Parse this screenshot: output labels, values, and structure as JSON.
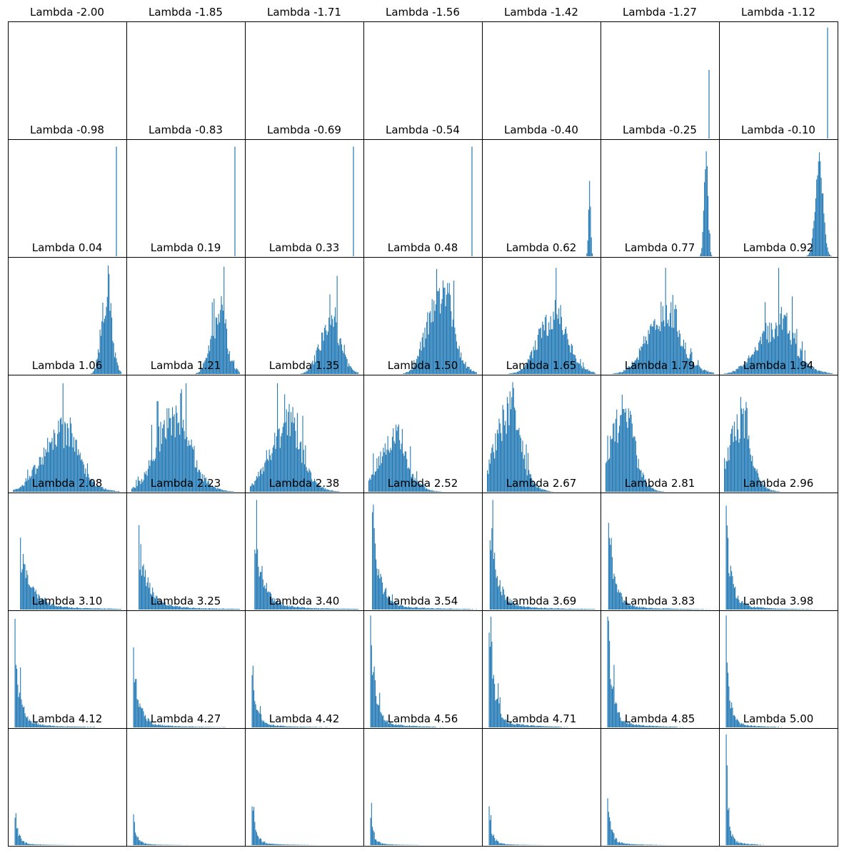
{
  "chart_data": {
    "type": "bar",
    "grid_layout": {
      "rows": 7,
      "cols": 7
    },
    "title_prefix": "Lambda",
    "bar_color": "#1f77b4",
    "axes_visible": false,
    "grid": false,
    "panels": [
      {
        "lambda": "-2.00",
        "shape": "empty"
      },
      {
        "lambda": "-1.85",
        "shape": "empty"
      },
      {
        "lambda": "-1.71",
        "shape": "empty"
      },
      {
        "lambda": "-1.56",
        "shape": "empty"
      },
      {
        "lambda": "-1.42",
        "shape": "empty"
      },
      {
        "lambda": "-1.27",
        "shape": "spike",
        "position": 0.955,
        "height": 0.6
      },
      {
        "lambda": "-1.12",
        "shape": "spike",
        "position": 0.955,
        "height": 0.97
      },
      {
        "lambda": "-0.98",
        "shape": "spike",
        "position": 0.955,
        "height": 0.96
      },
      {
        "lambda": "-0.83",
        "shape": "spike",
        "position": 0.955,
        "height": 0.96
      },
      {
        "lambda": "-0.69",
        "shape": "spike",
        "position": 0.955,
        "height": 0.96
      },
      {
        "lambda": "-0.54",
        "shape": "spike",
        "position": 0.955,
        "height": 0.96
      },
      {
        "lambda": "-0.40",
        "shape": "narrow",
        "position": 0.95,
        "spread": 0.01,
        "height": 0.66
      },
      {
        "lambda": "-0.25",
        "shape": "narrow",
        "position": 0.93,
        "spread": 0.018,
        "height": 0.92
      },
      {
        "lambda": "-0.10",
        "shape": "narrow",
        "position": 0.88,
        "spread": 0.035,
        "height": 0.91
      },
      {
        "lambda": "0.04",
        "shape": "peaked",
        "position": 0.85,
        "spread": 0.045,
        "height": 0.95
      },
      {
        "lambda": "0.19",
        "shape": "peaked",
        "position": 0.78,
        "spread": 0.07,
        "height": 0.94
      },
      {
        "lambda": "0.33",
        "shape": "peaked",
        "position": 0.71,
        "spread": 0.09,
        "height": 0.86
      },
      {
        "lambda": "0.48",
        "shape": "peaked",
        "position": 0.62,
        "spread": 0.11,
        "height": 0.92
      },
      {
        "lambda": "0.62",
        "shape": "peaked",
        "position": 0.56,
        "spread": 0.13,
        "height": 0.93
      },
      {
        "lambda": "0.77",
        "shape": "peaked",
        "position": 0.48,
        "spread": 0.15,
        "height": 0.93
      },
      {
        "lambda": "0.92",
        "shape": "peaked",
        "position": 0.42,
        "spread": 0.16,
        "height": 0.93
      },
      {
        "lambda": "1.06",
        "shape": "peaked",
        "position": 0.37,
        "spread": 0.16,
        "height": 0.95
      },
      {
        "lambda": "1.21",
        "shape": "peaked",
        "position": 0.33,
        "spread": 0.15,
        "height": 0.95
      },
      {
        "lambda": "1.35",
        "shape": "peaked",
        "position": 0.27,
        "spread": 0.14,
        "height": 0.95
      },
      {
        "lambda": "1.50",
        "shape": "peaked",
        "position": 0.18,
        "spread": 0.12,
        "height": 0.59
      },
      {
        "lambda": "1.65",
        "shape": "peaked",
        "position": 0.15,
        "spread": 0.11,
        "height": 0.96
      },
      {
        "lambda": "1.79",
        "shape": "peaked",
        "position": 0.12,
        "spread": 0.1,
        "height": 0.85
      },
      {
        "lambda": "1.94",
        "shape": "peaked",
        "position": 0.1,
        "spread": 0.1,
        "height": 0.83
      },
      {
        "lambda": "2.08",
        "shape": "decay",
        "position": 0.06,
        "spread": 0.1,
        "height": 0.63
      },
      {
        "lambda": "2.23",
        "shape": "decay",
        "position": 0.06,
        "spread": 0.09,
        "height": 0.74
      },
      {
        "lambda": "2.38",
        "shape": "decay",
        "position": 0.04,
        "spread": 0.08,
        "height": 0.96
      },
      {
        "lambda": "2.52",
        "shape": "decay",
        "position": 0.03,
        "spread": 0.07,
        "height": 0.92
      },
      {
        "lambda": "2.67",
        "shape": "decay",
        "position": 0.02,
        "spread": 0.07,
        "height": 0.96
      },
      {
        "lambda": "2.81",
        "shape": "decay",
        "position": 0.02,
        "spread": 0.06,
        "height": 0.76
      },
      {
        "lambda": "2.96",
        "shape": "decay",
        "position": 0.01,
        "spread": 0.05,
        "height": 0.91
      },
      {
        "lambda": "3.10",
        "shape": "decay",
        "position": 0.01,
        "spread": 0.05,
        "height": 0.95
      },
      {
        "lambda": "3.25",
        "shape": "decay",
        "position": 0.01,
        "spread": 0.05,
        "height": 0.7
      },
      {
        "lambda": "3.40",
        "shape": "decay",
        "position": 0.01,
        "spread": 0.04,
        "height": 0.54
      },
      {
        "lambda": "3.54",
        "shape": "decay",
        "position": 0.01,
        "spread": 0.04,
        "height": 0.98
      },
      {
        "lambda": "3.69",
        "shape": "decay",
        "position": 0.01,
        "spread": 0.04,
        "height": 0.97
      },
      {
        "lambda": "3.83",
        "shape": "decay",
        "position": 0.01,
        "spread": 0.04,
        "height": 0.97
      },
      {
        "lambda": "3.98",
        "shape": "decay",
        "position": 0.01,
        "spread": 0.03,
        "height": 0.98
      },
      {
        "lambda": "4.12",
        "shape": "decay",
        "position": 0.01,
        "spread": 0.03,
        "height": 0.28
      },
      {
        "lambda": "4.27",
        "shape": "decay",
        "position": 0.01,
        "spread": 0.03,
        "height": 0.27
      },
      {
        "lambda": "4.42",
        "shape": "decay",
        "position": 0.01,
        "spread": 0.03,
        "height": 0.34
      },
      {
        "lambda": "4.56",
        "shape": "decay",
        "position": 0.01,
        "spread": 0.03,
        "height": 0.37
      },
      {
        "lambda": "4.71",
        "shape": "decay",
        "position": 0.01,
        "spread": 0.03,
        "height": 0.34
      },
      {
        "lambda": "4.85",
        "shape": "decay",
        "position": 0.01,
        "spread": 0.03,
        "height": 0.41
      },
      {
        "lambda": "5.00",
        "shape": "decay",
        "position": 0.01,
        "spread": 0.02,
        "height": 0.97
      }
    ]
  }
}
